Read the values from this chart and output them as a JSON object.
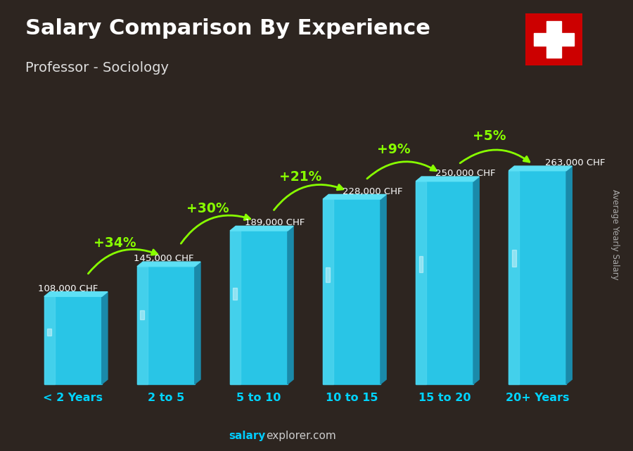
{
  "title_line1": "Salary Comparison By Experience",
  "title_line2": "Professor - Sociology",
  "categories": [
    "< 2 Years",
    "2 to 5",
    "5 to 10",
    "10 to 15",
    "15 to 20",
    "20+ Years"
  ],
  "values": [
    108000,
    145000,
    189000,
    228000,
    250000,
    263000
  ],
  "value_labels": [
    "108,000 CHF",
    "145,000 CHF",
    "189,000 CHF",
    "228,000 CHF",
    "250,000 CHF",
    "263,000 CHF"
  ],
  "pct_labels": [
    "+34%",
    "+30%",
    "+21%",
    "+9%",
    "+5%"
  ],
  "bar_color_front": "#29c5e6",
  "bar_color_light": "#55d8f0",
  "bar_color_side": "#1a8aaa",
  "bar_color_top": "#5de0f5",
  "bg_color": "#3a3028",
  "title_color": "#ffffff",
  "subtitle_color": "#dddddd",
  "pct_color": "#88ff00",
  "xlabel_color": "#00d4ff",
  "val_label_color": "#ffffff",
  "watermark_bold": "salary",
  "watermark_rest": "explorer.com",
  "watermark_color": "#00ccff",
  "watermark_rest_color": "#cccccc",
  "ylabel_text": "Average Yearly Salary",
  "ylabel_color": "#aaaaaa",
  "flag_red": "#cc0000",
  "figsize": [
    9.0,
    6.41
  ],
  "dpi": 100
}
